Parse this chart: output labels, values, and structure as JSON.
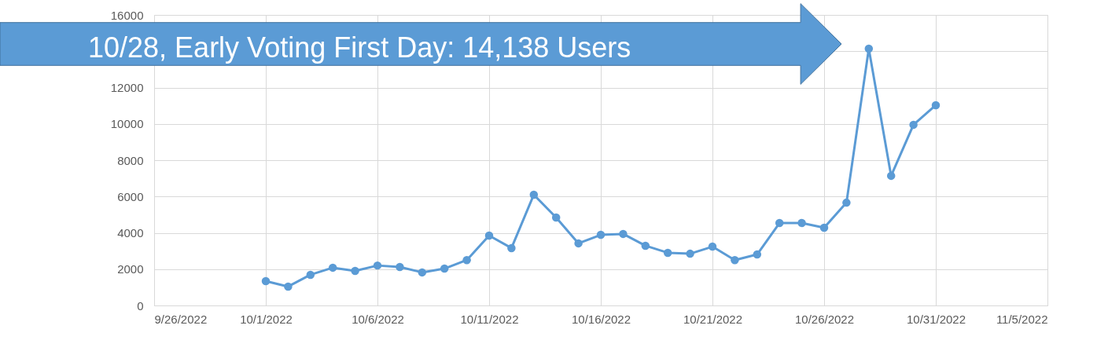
{
  "chart_data": {
    "type": "line",
    "x": [
      "2022-10-01",
      "2022-10-02",
      "2022-10-03",
      "2022-10-04",
      "2022-10-05",
      "2022-10-06",
      "2022-10-07",
      "2022-10-08",
      "2022-10-09",
      "2022-10-10",
      "2022-10-11",
      "2022-10-12",
      "2022-10-13",
      "2022-10-14",
      "2022-10-15",
      "2022-10-16",
      "2022-10-17",
      "2022-10-18",
      "2022-10-19",
      "2022-10-20",
      "2022-10-21",
      "2022-10-22",
      "2022-10-23",
      "2022-10-24",
      "2022-10-25",
      "2022-10-26",
      "2022-10-27",
      "2022-10-28",
      "2022-10-29",
      "2022-10-30",
      "2022-10-31"
    ],
    "series": [
      {
        "color": "#5b9bd5",
        "values": [
          1340,
          1040,
          1690,
          2080,
          1900,
          2200,
          2120,
          1820,
          2030,
          2500,
          3850,
          3160,
          6100,
          4840,
          3420,
          3890,
          3940,
          3290,
          2900,
          2850,
          3240,
          2500,
          2810,
          4540,
          4540,
          4280,
          5660,
          14138,
          7140,
          9950,
          11030
        ]
      }
    ],
    "xlim": [
      "2022-09-26",
      "2022-11-05"
    ],
    "xticks": [
      {
        "value": "2022-09-26",
        "label": "9/26/2022"
      },
      {
        "value": "2022-10-01",
        "label": "10/1/2022"
      },
      {
        "value": "2022-10-06",
        "label": "10/6/2022"
      },
      {
        "value": "2022-10-11",
        "label": "10/11/2022"
      },
      {
        "value": "2022-10-16",
        "label": "10/16/2022"
      },
      {
        "value": "2022-10-21",
        "label": "10/21/2022"
      },
      {
        "value": "2022-10-26",
        "label": "10/26/2022"
      },
      {
        "value": "2022-10-31",
        "label": "10/31/2022"
      },
      {
        "value": "2022-11-05",
        "label": "11/5/2022"
      }
    ],
    "ylim": [
      0,
      16000
    ],
    "yticks": [
      0,
      2000,
      4000,
      6000,
      8000,
      10000,
      12000,
      {
        "value": 14000,
        "label": null
      },
      16000
    ],
    "grid": true,
    "marker": "circle",
    "line_style": "solid",
    "annotations": [
      "10/28, Early Voting First Day: 14,138 Users"
    ]
  }
}
